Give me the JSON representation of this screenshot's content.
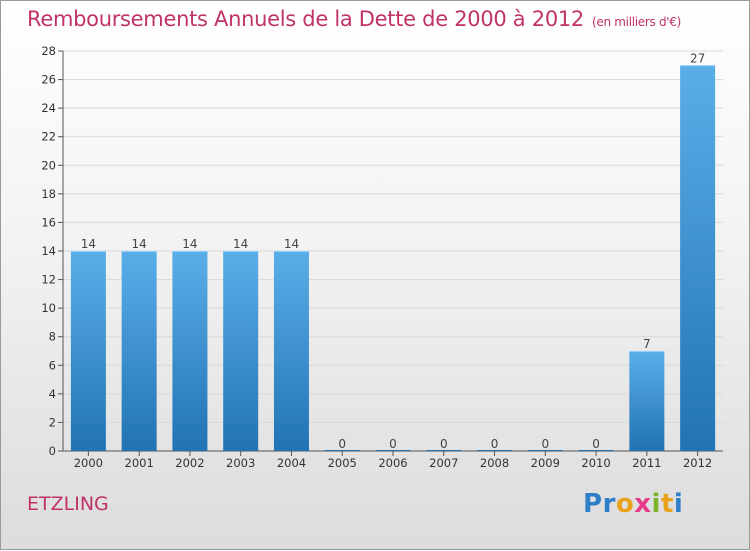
{
  "header": {
    "title": "Remboursements Annuels de la Dette de 2000 à 2012",
    "unit": "(en milliers d'€)"
  },
  "footer": {
    "commune": "ETZLING",
    "logo_letters": [
      "P",
      "r",
      "o",
      "x",
      "i",
      "t",
      "i"
    ],
    "logo_colors": [
      "#2f7fc8",
      "#2f7fc8",
      "#e8a21c",
      "#e83a8a",
      "#7ab52c",
      "#e8a21c",
      "#2f7fc8"
    ]
  },
  "chart_data": {
    "type": "bar",
    "title": "Remboursements Annuels de la Dette de 2000 à 2012",
    "categories": [
      "2000",
      "2001",
      "2002",
      "2003",
      "2004",
      "2005",
      "2006",
      "2007",
      "2008",
      "2009",
      "2010",
      "2011",
      "2012"
    ],
    "values": [
      14,
      14,
      14,
      14,
      14,
      0,
      0,
      0,
      0,
      0,
      0,
      7,
      27
    ],
    "value_labels": [
      "14",
      "14",
      "14",
      "14",
      "14",
      "0",
      "0",
      "0",
      "0",
      "0",
      "0",
      "7",
      "27"
    ],
    "ylim": [
      0,
      28
    ],
    "yticks": [
      0,
      2,
      4,
      6,
      8,
      10,
      12,
      14,
      16,
      18,
      20,
      22,
      24,
      26,
      28
    ],
    "grid": true,
    "bar_color_light": "#5aaee8",
    "bar_color_dark": "#2173b3"
  }
}
